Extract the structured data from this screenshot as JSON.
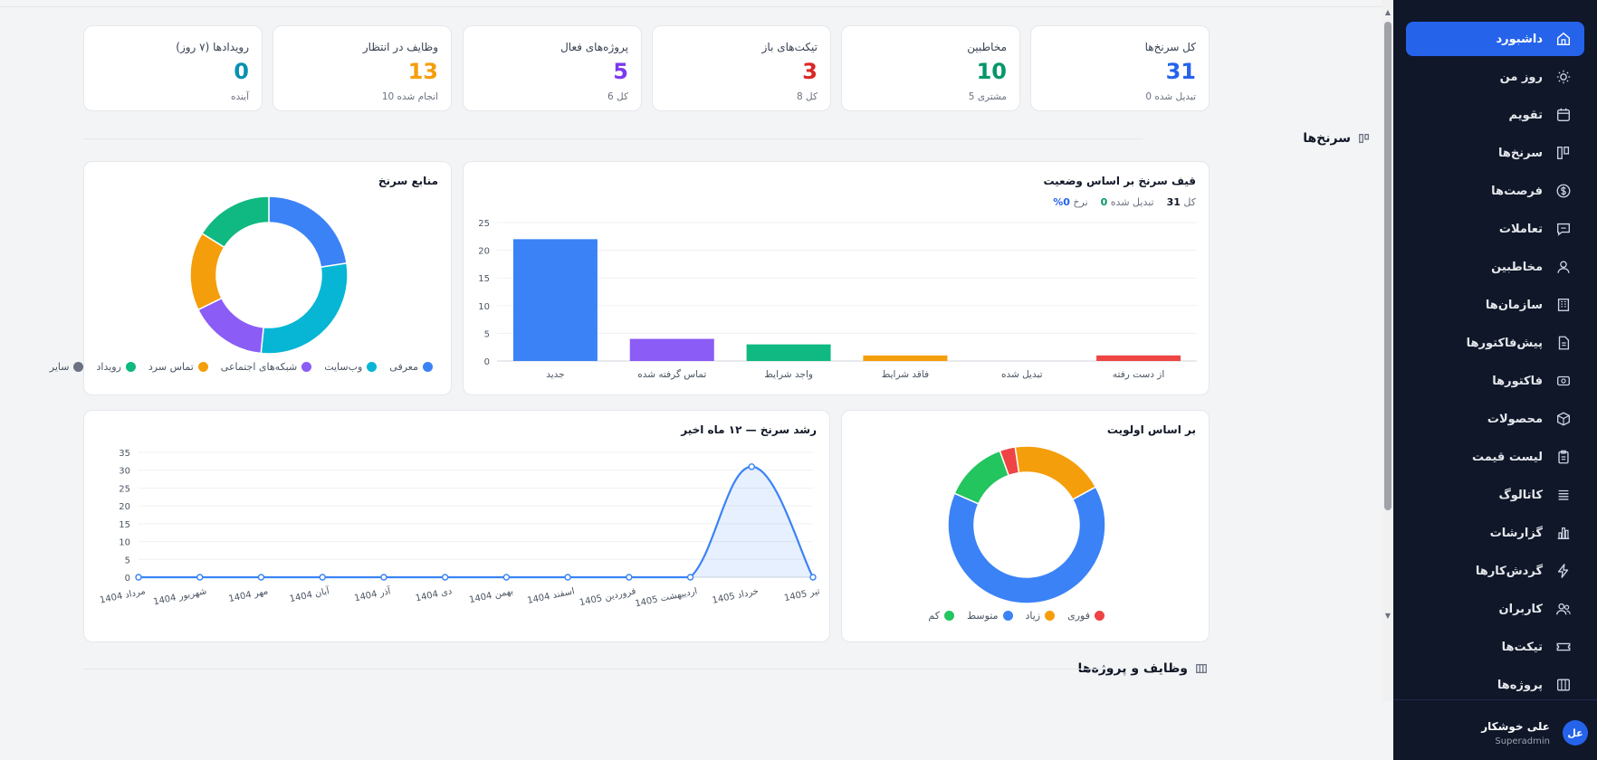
{
  "sidebar": {
    "items": [
      {
        "label": "داشبورد",
        "icon": "home-icon",
        "active": true
      },
      {
        "label": "روز من",
        "icon": "sun-icon"
      },
      {
        "label": "تقویم",
        "icon": "calendar-icon"
      },
      {
        "label": "سرنخ‌ها",
        "icon": "funnel-icon"
      },
      {
        "label": "فرصت‌ها",
        "icon": "dollar-icon"
      },
      {
        "label": "تعاملات",
        "icon": "chat-icon"
      },
      {
        "label": "مخاطبین",
        "icon": "user-icon"
      },
      {
        "label": "سازمان‌ها",
        "icon": "building-icon"
      },
      {
        "label": "پیش‌فاکتورها",
        "icon": "document-icon"
      },
      {
        "label": "فاکتورها",
        "icon": "money-icon"
      },
      {
        "label": "محصولات",
        "icon": "box-icon"
      },
      {
        "label": "لیست قیمت",
        "icon": "clipboard-icon"
      },
      {
        "label": "کاتالوگ",
        "icon": "list-icon"
      },
      {
        "label": "گزارشات",
        "icon": "bar-chart-icon"
      },
      {
        "label": "گردش‌کارها",
        "icon": "lightning-icon"
      },
      {
        "label": "کاربران",
        "icon": "users-icon"
      },
      {
        "label": "تیکت‌ها",
        "icon": "ticket-icon"
      },
      {
        "label": "پروژه‌ها",
        "icon": "kanban-icon"
      }
    ],
    "user": {
      "initials": "عل",
      "name": "علی خوشکار",
      "role": "Superadmin"
    }
  },
  "stats": [
    {
      "label": "کل سرنخ‌ها",
      "value": "31",
      "sub": "0 تبدیل شده",
      "color": "#2563eb"
    },
    {
      "label": "مخاطبین",
      "value": "10",
      "sub": "5 مشتری",
      "color": "#059669"
    },
    {
      "label": "تیکت‌های باز",
      "value": "3",
      "sub": "8 کل",
      "color": "#dc2626"
    },
    {
      "label": "پروژه‌های فعال",
      "value": "5",
      "sub": "6 کل",
      "color": "#7c3aed"
    },
    {
      "label": "وظایف در انتظار",
      "value": "13",
      "sub": "10 انجام شده",
      "color": "#f59e0b"
    },
    {
      "label": "رویدادها (۷ روز)",
      "value": "0",
      "sub": "آینده",
      "color": "#0891b2"
    }
  ],
  "sections": {
    "leads": "سرنخ‌ها",
    "tasks": "وظایف و پروژه‌ها"
  },
  "funnel": {
    "title": "قیف سرنخ بر اساس وضعیت",
    "summary": {
      "total_label": "کل",
      "total": "31",
      "converted_label": "تبدیل شده",
      "converted": "0",
      "rate_label": "نرخ",
      "rate": "0%"
    }
  },
  "sources": {
    "title": "منابع سرنخ"
  },
  "growth": {
    "title": "رشد سرنخ — ۱۲ ماه اخیر"
  },
  "priority": {
    "title": "بر اساس اولویت"
  },
  "chart_data": [
    {
      "type": "bar",
      "title": "قیف سرنخ بر اساس وضعیت",
      "categories": [
        "جدید",
        "تماس گرفته شده",
        "واجد شرایط",
        "فاقد شرایط",
        "تبدیل شده",
        "از دست رفته"
      ],
      "values": [
        22,
        4,
        3,
        1,
        0,
        1
      ],
      "colors": [
        "#3b82f6",
        "#8b5cf6",
        "#10b981",
        "#f59e0b",
        "#06b6d4",
        "#ef4444"
      ],
      "ylim": [
        0,
        25
      ],
      "yticks": [
        0,
        5,
        10,
        15,
        20,
        25
      ],
      "grid": true
    },
    {
      "type": "pie",
      "title": "منابع سرنخ",
      "labels": [
        "معرفی",
        "وب‌سایت",
        "شبکه‌های اجتماعی",
        "تماس سرد",
        "رویداد",
        "سایر"
      ],
      "values": [
        7,
        9,
        5,
        5,
        5,
        0
      ],
      "colors": [
        "#3b82f6",
        "#06b6d4",
        "#8b5cf6",
        "#f59e0b",
        "#10b981",
        "#6b7280"
      ],
      "legend": "bottom"
    },
    {
      "type": "line",
      "title": "رشد سرنخ — ۱۲ ماه اخیر",
      "categories": [
        "مرداد 1404",
        "شهریور 1404",
        "مهر 1404",
        "آبان 1404",
        "آذر 1404",
        "دی 1404",
        "بهمن 1404",
        "اسفند 1404",
        "فروردین 1405",
        "اردیبهشت 1405",
        "خرداد 1405",
        "تیر 1405"
      ],
      "values": [
        0,
        0,
        0,
        0,
        0,
        0,
        0,
        0,
        0,
        0,
        31,
        0
      ],
      "color": "#3b82f6",
      "ylim": [
        0,
        35
      ],
      "yticks": [
        0,
        5,
        10,
        15,
        20,
        25,
        30,
        35
      ],
      "grid": true
    },
    {
      "type": "pie",
      "title": "بر اساس اولویت",
      "labels": [
        "فوری",
        "زیاد",
        "متوسط",
        "کم"
      ],
      "values": [
        1,
        6,
        20,
        4
      ],
      "colors": [
        "#ef4444",
        "#f59e0b",
        "#3b82f6",
        "#22c55e"
      ],
      "legend": "bottom"
    }
  ]
}
